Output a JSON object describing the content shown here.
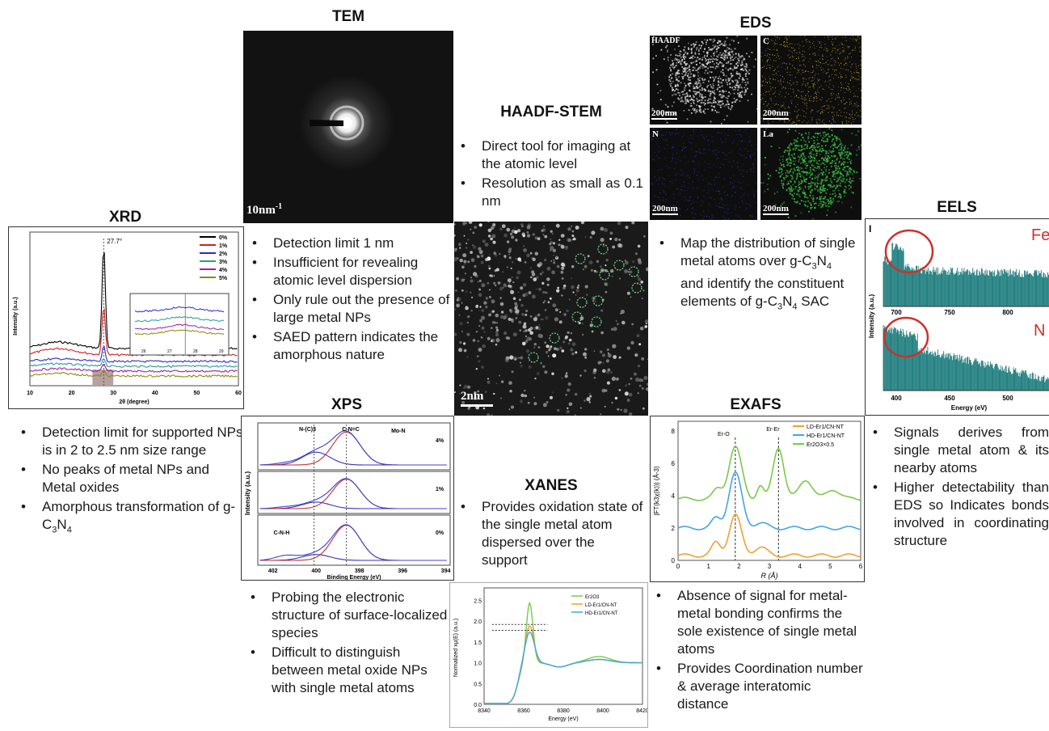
{
  "sections": {
    "xrd": {
      "title": "XRD",
      "peak_label": "27.7°",
      "ylabel": "Intensity (a.u.)",
      "xlabel": "2θ (degree)",
      "xticks": [
        "10",
        "20",
        "30",
        "40",
        "50",
        "60"
      ],
      "legend": [
        "0%",
        "1%",
        "2%",
        "3%",
        "4%",
        "5%"
      ],
      "inset_ticks": [
        "26",
        "27",
        "28",
        "29"
      ],
      "colors": [
        "#000000",
        "#cc2020",
        "#2a2ad0",
        "#2a9a9a",
        "#a020a0",
        "#8a8a10"
      ],
      "bullets": [
        "Detection limit for supported NPs is in 2 to 2.5 nm size range",
        "No peaks of metal NPs and Metal oxides",
        "Amorphous transformation of g-C3N4"
      ]
    },
    "tem": {
      "title": "TEM",
      "scalebar": "10nm",
      "scalebar_sup": "-1",
      "bullets": [
        "Detection limit 1 nm",
        "Insufficient for revealing atomic level dispersion",
        "Only rule out the presence of large metal NPs",
        "SAED pattern indicates the amorphous nature"
      ]
    },
    "haadf": {
      "title": "HAADF-STEM",
      "scalebar": "2nm",
      "bullets": [
        "Direct tool for imaging at the atomic level",
        "Resolution as small as 0.1 nm"
      ]
    },
    "eds": {
      "title": "EDS",
      "panels": [
        {
          "label": "HAADF",
          "scale": "200nm"
        },
        {
          "label": "C",
          "scale": "200nm"
        },
        {
          "label": "N",
          "scale": "200nm"
        },
        {
          "label": "La",
          "scale": "200nm"
        }
      ],
      "bullet_parts": {
        "p1": "Map the distribution of single metal atoms over g-C",
        "p2": "N",
        "p3": " and identify the constituent elements of g-C",
        "p4": "N",
        "p5": " SAC",
        "s1": "3",
        "s2": "4"
      }
    },
    "eels": {
      "title": "EELS",
      "panel_label": "I",
      "fe": "Fe",
      "n": "N",
      "ylabel": "Intensity (a.u.)",
      "xlabel": "Energy (eV)",
      "top_ticks": [
        "700",
        "750",
        "800"
      ],
      "bottom_ticks": [
        "400",
        "450",
        "500"
      ],
      "bullets": [
        "Signals derives from single metal atom & its nearby atoms",
        "Higher detectability than EDS so Indicates bonds involved in coordinating structure"
      ]
    },
    "xps": {
      "title": "XPS",
      "ylabel": "Intensity (a.u.)",
      "xlabel": "Binding Energy (eV)",
      "peaks_top": [
        "N-(C)3",
        "C-N=C",
        "Mo-N"
      ],
      "peak_bottom": "C-N-H",
      "pct": [
        "4%",
        "1%",
        "0%"
      ],
      "xticks": [
        "402",
        "400",
        "398",
        "396",
        "394"
      ],
      "bullets": [
        "Probing the electronic structure of surface-localized species",
        "Difficult to distinguish between metal oxide NPs with single metal atoms"
      ]
    },
    "xanes": {
      "title": "XANES",
      "bullets": [
        "Provides oxidation state of the single metal atom dispersed over the support"
      ],
      "ylabel": "Normalized xμ(E) (a.u.)",
      "xlabel": "Energy (eV)",
      "legend": [
        "Er2O3",
        "LD-Er1/CN-NT",
        "HD-Er1/CN-NT"
      ],
      "xticks": [
        "8340",
        "8360",
        "8380",
        "8400",
        "8420"
      ],
      "yticks": [
        "0.0",
        "0.5",
        "1.0",
        "1.5",
        "2.0",
        "2.5"
      ],
      "colors": [
        "#7ac94a",
        "#f0a030",
        "#40a8e0"
      ]
    },
    "exafs": {
      "title": "EXAFS",
      "peak1": "Er-O",
      "peak2": "Er-Er",
      "legend": [
        "LD-Er1/CN-NT",
        "HD-Er1/CN-NT",
        "Er2O3×0.5"
      ],
      "ylabel": "|FT(k3χ(k))| (Å-3)",
      "xlabel": "R (Å)",
      "xticks": [
        "0",
        "1",
        "2",
        "3",
        "4",
        "5",
        "6"
      ],
      "yticks": [
        "0",
        "2",
        "4",
        "6",
        "8"
      ],
      "colors": [
        "#f0a030",
        "#40a8e0",
        "#7ac94a"
      ],
      "bullets": [
        "Absence of signal for metal-metal bonding confirms the sole existence of single metal atoms",
        "Provides Coordination number & average interatomic distance"
      ]
    }
  }
}
